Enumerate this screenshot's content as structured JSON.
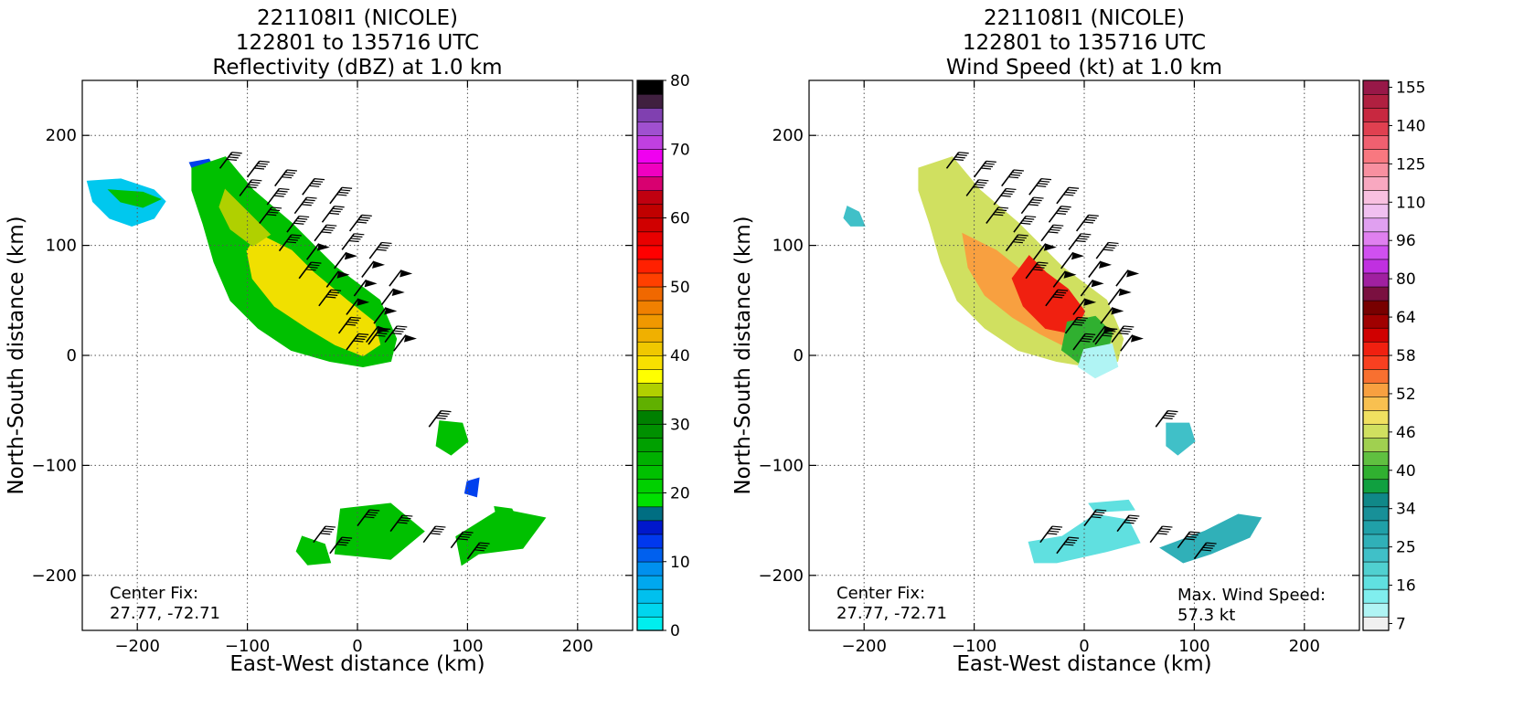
{
  "panels": [
    {
      "title_lines": [
        "221108I1 (NICOLE)",
        "122801 to 135716 UTC",
        "Reflectivity (dBZ) at 1.0 km"
      ],
      "xlabel": "East-West distance (km)",
      "ylabel": "North-South distance (km)",
      "xticks": [
        "−200",
        "−100",
        "0",
        "100",
        "200"
      ],
      "yticks": [
        "200",
        "100",
        "0",
        "−100",
        "−200"
      ],
      "annotation_left": [
        "Center Fix:",
        "27.77, -72.71"
      ],
      "annotation_right": [],
      "colorbar": {
        "tick_labels": [
          "0",
          "10",
          "20",
          "30",
          "40",
          "50",
          "60",
          "70",
          "80"
        ],
        "colors": [
          "#00eeee",
          "#00d6ee",
          "#00c0ee",
          "#00a8ee",
          "#0090ee",
          "#0060ee",
          "#0038ee",
          "#0018cc",
          "#006e82",
          "#00e000",
          "#00d000",
          "#00c000",
          "#00b000",
          "#00a000",
          "#009000",
          "#008000",
          "#60b000",
          "#b0d000",
          "#ffff00",
          "#f8e000",
          "#f0c800",
          "#f0b000",
          "#f09800",
          "#f08000",
          "#f06800",
          "#ff4000",
          "#ff2000",
          "#ff0000",
          "#e80000",
          "#d00000",
          "#c00000",
          "#c00010",
          "#d80070",
          "#f000c0",
          "#f000f0",
          "#c040e0",
          "#a050d0",
          "#8040b0",
          "#402040",
          "#000000"
        ]
      }
    },
    {
      "title_lines": [
        "221108I1 (NICOLE)",
        "122801 to 135716 UTC",
        "Wind Speed (kt) at 1.0 km"
      ],
      "xlabel": "East-West distance (km)",
      "ylabel": "North-South distance (km)",
      "xticks": [
        "−200",
        "−100",
        "0",
        "100",
        "200"
      ],
      "yticks": [
        "200",
        "100",
        "0",
        "−100",
        "−200"
      ],
      "annotation_left": [
        "Center Fix:",
        "27.77, -72.71"
      ],
      "annotation_right": [
        "Max. Wind Speed:",
        "57.3 kt"
      ],
      "colorbar": {
        "tick_labels": [
          "7",
          "16",
          "25",
          "34",
          "40",
          "46",
          "52",
          "58",
          "64",
          "80",
          "96",
          "110",
          "125",
          "140",
          "155"
        ],
        "colors": [
          "#f0f0f0",
          "#b0f4f4",
          "#80eeee",
          "#60e0e0",
          "#50d0d0",
          "#40c0c8",
          "#30b0b8",
          "#20a0a8",
          "#189098",
          "#108888",
          "#10a040",
          "#30b030",
          "#60c040",
          "#a0d050",
          "#d0e060",
          "#f0e060",
          "#f8c050",
          "#f8a040",
          "#f87030",
          "#f84020",
          "#f02010",
          "#d00000",
          "#a00000",
          "#780000",
          "#7a1040",
          "#a020a0",
          "#c030e0",
          "#d050f0",
          "#e080f0",
          "#e0a0f0",
          "#f0c0f0",
          "#f8c0e0",
          "#f8a8c0",
          "#f890a0",
          "#f87880",
          "#f06070",
          "#e04050",
          "#c82840",
          "#b02040",
          "#981848"
        ]
      }
    }
  ],
  "chart_data": [
    {
      "type": "heatmap",
      "title": "221108I1 (NICOLE) 122801 to 135716 UTC Reflectivity (dBZ) at 1.0 km",
      "xlabel": "East-West distance (km)",
      "ylabel": "North-South distance (km)",
      "xlim": [
        -250,
        250
      ],
      "ylim": [
        -250,
        250
      ],
      "grid": true,
      "colorbar_range": [
        0,
        80
      ],
      "colorbar_units": "dBZ",
      "center_fix": "27.77, -72.71",
      "features": "main rainband from (-150,180) to (40,0) peaking ~35-40 dBZ; scattered cells near (-40..170, -130..-200)"
    },
    {
      "type": "heatmap",
      "title": "221108I1 (NICOLE) 122801 to 135716 UTC Wind Speed (kt) at 1.0 km",
      "xlabel": "East-West distance (km)",
      "ylabel": "North-South distance (km)",
      "xlim": [
        -250,
        250
      ],
      "ylim": [
        -250,
        250
      ],
      "grid": true,
      "colorbar_range": [
        7,
        155
      ],
      "colorbar_units": "kt",
      "center_fix": "27.77, -72.71",
      "max_wind_speed_kt": 57.3,
      "features": "highest winds ~52-58 kt near (-30..-10, 30..60); light winds (7-30 kt) in southern cells"
    }
  ]
}
